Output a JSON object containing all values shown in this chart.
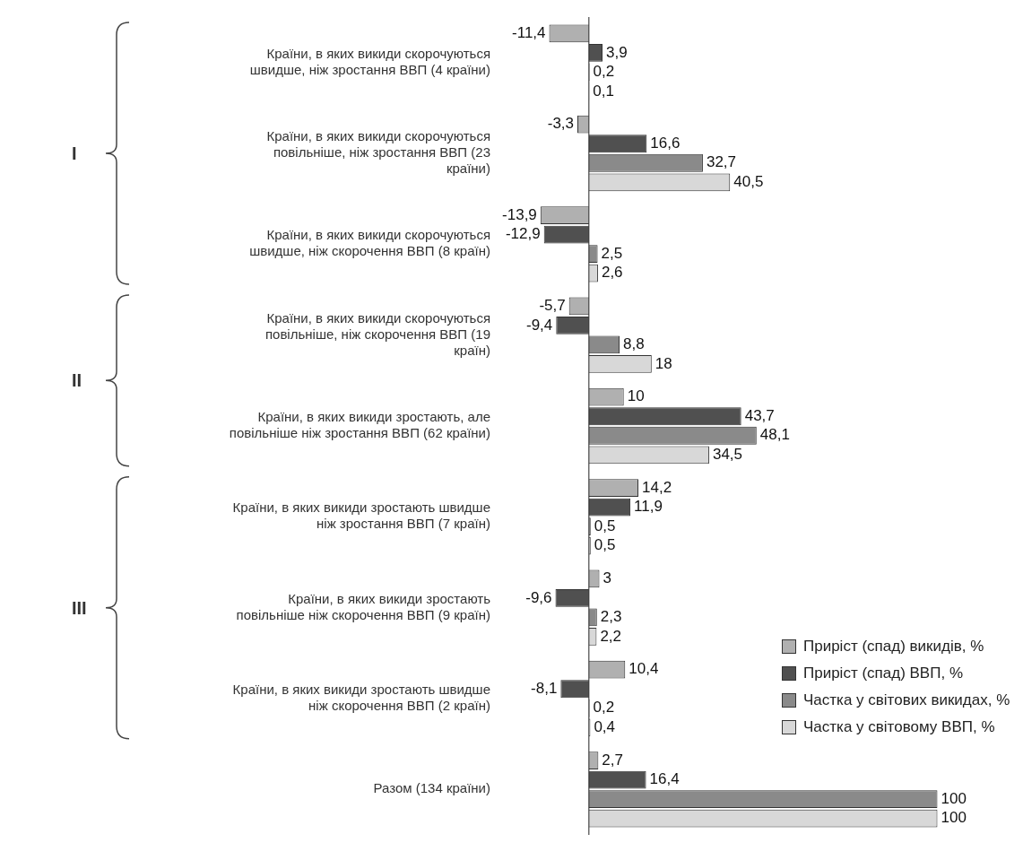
{
  "chart_data": {
    "type": "bar",
    "orientation": "horizontal",
    "tick_labels": "y",
    "legend": "bottom right",
    "categories": [
      "Країни, в яких викиди скорочуються швидше, ніж зростання ВВП (4 країни)",
      "Країни, в яких викиди скорочуються повільніше, ніж зростання ВВП (23 країни)",
      "Країни, в яких викиди скорочуються швидше, ніж скорочення ВВП (8 країн)",
      "Країни, в яких викиди скорочуються повільніше, ніж скорочення ВВП (19 країн)",
      "Країни, в яких викиди зростають, але повільніше ніж зростання ВВП (62 країни)",
      "Країни, в яких викиди зростають швидше ніж зростання ВВП (7 країн)",
      "Країни, в яких викиди зростають повільніше ніж скорочення ВВП (9 країн)",
      "Країни, в яких викиди зростають швидше ніж скорочення ВВП (2 країн)",
      "Разом (134 країни)"
    ],
    "series": [
      {
        "name": "Приріст (спад) викидів, %",
        "color": "#b0b0b0",
        "values": [
          -11.4,
          -3.3,
          -13.9,
          -5.7,
          10,
          14.2,
          3,
          10.4,
          2.7
        ],
        "value_labels": [
          "-11,4",
          "-3,3",
          "-13,9",
          "-5,7",
          "10",
          "14,2",
          "3",
          "10,4",
          "2,7"
        ]
      },
      {
        "name": "Приріст (спад) ВВП, %",
        "color": "#505050",
        "values": [
          3.9,
          16.6,
          -12.9,
          -9.4,
          43.7,
          11.9,
          -9.6,
          -8.1,
          16.4
        ],
        "value_labels": [
          "3,9",
          "16,6",
          "-12,9",
          "-9,4",
          "43,7",
          "11,9",
          "-9,6",
          "-8,1",
          "16,4"
        ]
      },
      {
        "name": "Частка у світових викидах, %",
        "color": "#8a8a8a",
        "values": [
          0.2,
          32.7,
          2.5,
          8.8,
          48.1,
          0.5,
          2.3,
          0.2,
          100
        ],
        "value_labels": [
          "0,2",
          "32,7",
          "2,5",
          "8,8",
          "48,1",
          "0,5",
          "2,3",
          "0,2",
          "100"
        ]
      },
      {
        "name": "Частка у світовому ВВП, %",
        "color": "#d8d8d8",
        "values": [
          0.1,
          40.5,
          2.6,
          18,
          34.5,
          0.5,
          2.2,
          0.4,
          100
        ],
        "value_labels": [
          "0,1",
          "40,5",
          "2,6",
          "18",
          "34,5",
          "0,5",
          "2,2",
          "0,4",
          "100"
        ]
      }
    ],
    "annotations": [
      "I",
      "II",
      "III"
    ]
  }
}
